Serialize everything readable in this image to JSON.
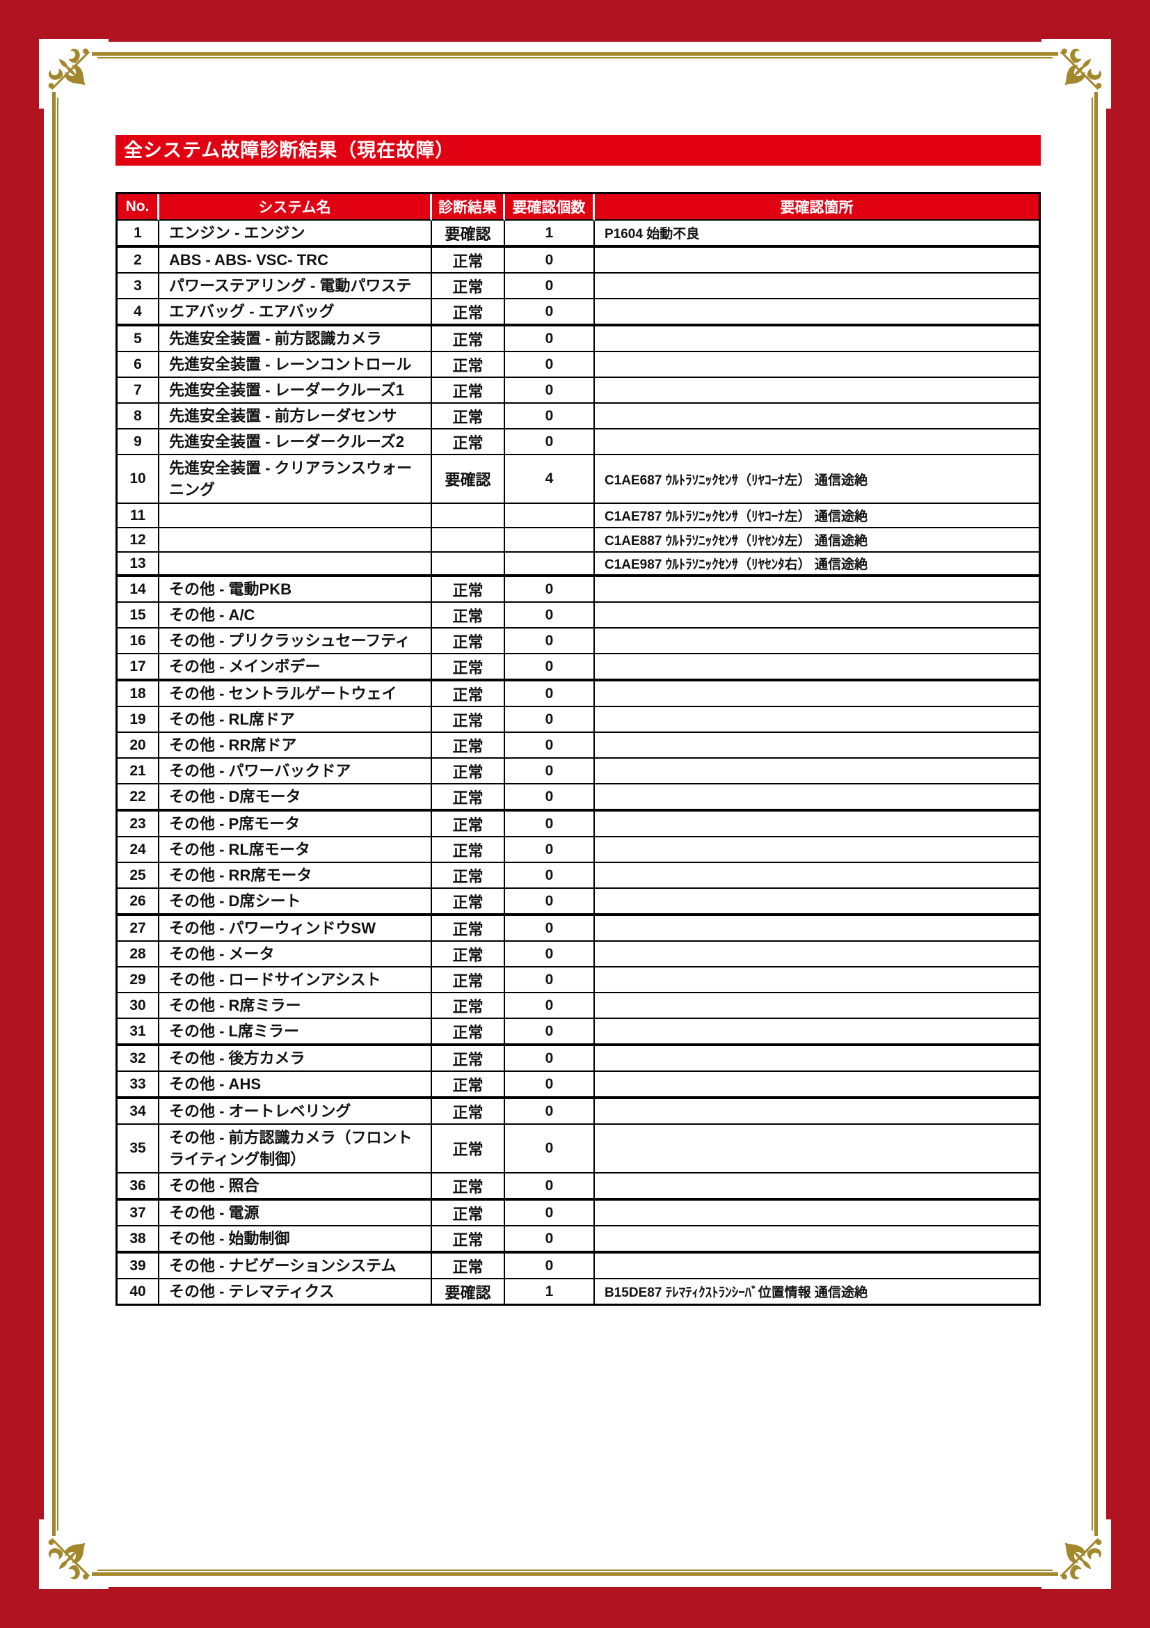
{
  "page": {
    "title": "全システム故障診断結果（現在故障）"
  },
  "colors": {
    "border_red": "#b11420",
    "accent_red": "#e10012",
    "gold": "#a3872c",
    "text": "#111111"
  },
  "table": {
    "headers": [
      "No.",
      "システム名",
      "診断結果",
      "要確認個数",
      "要確認箇所"
    ],
    "rows": [
      {
        "no": "1",
        "system": "エンジン - エンジン",
        "result": "要確認",
        "count": "1",
        "detail": "P1604 始動不良",
        "tall": false,
        "group_end": true
      },
      {
        "no": "2",
        "system": "ABS - ABS- VSC- TRC",
        "result": "正常",
        "count": "0",
        "detail": "",
        "tall": false,
        "group_end": false
      },
      {
        "no": "3",
        "system": "パワーステアリング - 電動パワステ",
        "result": "正常",
        "count": "0",
        "detail": "",
        "tall": false,
        "group_end": false
      },
      {
        "no": "4",
        "system": "エアバッグ - エアバッグ",
        "result": "正常",
        "count": "0",
        "detail": "",
        "tall": false,
        "group_end": true
      },
      {
        "no": "5",
        "system": "先進安全装置 - 前方認識カメラ",
        "result": "正常",
        "count": "0",
        "detail": "",
        "tall": false,
        "group_end": false
      },
      {
        "no": "6",
        "system": "先進安全装置 - レーンコントロール",
        "result": "正常",
        "count": "0",
        "detail": "",
        "tall": false,
        "group_end": false
      },
      {
        "no": "7",
        "system": "先進安全装置 - レーダークルーズ1",
        "result": "正常",
        "count": "0",
        "detail": "",
        "tall": false,
        "group_end": false
      },
      {
        "no": "8",
        "system": "先進安全装置 - 前方レーダセンサ",
        "result": "正常",
        "count": "0",
        "detail": "",
        "tall": false,
        "group_end": false
      },
      {
        "no": "9",
        "system": "先進安全装置 - レーダークルーズ2",
        "result": "正常",
        "count": "0",
        "detail": "",
        "tall": false,
        "group_end": false
      },
      {
        "no": "10",
        "system": "先進安全装置 - クリアランスウォーニング",
        "result": "要確認",
        "count": "4",
        "detail": "C1AE687 ｳﾙﾄﾗｿﾆｯｸｾﾝｻ（ﾘﾔｺｰﾅ左） 通信途絶",
        "tall": true,
        "group_end": false
      },
      {
        "no": "11",
        "system": "",
        "result": "",
        "count": "",
        "detail": "C1AE787 ｳﾙﾄﾗｿﾆｯｸｾﾝｻ（ﾘﾔｺｰﾅ左） 通信途絶",
        "tall": false,
        "group_end": false
      },
      {
        "no": "12",
        "system": "",
        "result": "",
        "count": "",
        "detail": "C1AE887 ｳﾙﾄﾗｿﾆｯｸｾﾝｻ（ﾘﾔｾﾝﾀ左） 通信途絶",
        "tall": false,
        "group_end": false
      },
      {
        "no": "13",
        "system": "",
        "result": "",
        "count": "",
        "detail": "C1AE987 ｳﾙﾄﾗｿﾆｯｸｾﾝｻ（ﾘﾔｾﾝﾀ右） 通信途絶",
        "tall": false,
        "group_end": true
      },
      {
        "no": "14",
        "system": "その他 - 電動PKB",
        "result": "正常",
        "count": "0",
        "detail": "",
        "tall": false,
        "group_end": false
      },
      {
        "no": "15",
        "system": "その他 - A/C",
        "result": "正常",
        "count": "0",
        "detail": "",
        "tall": false,
        "group_end": false
      },
      {
        "no": "16",
        "system": "その他 - プリクラッシュセーフティ",
        "result": "正常",
        "count": "0",
        "detail": "",
        "tall": false,
        "group_end": false
      },
      {
        "no": "17",
        "system": "その他 - メインボデー",
        "result": "正常",
        "count": "0",
        "detail": "",
        "tall": false,
        "group_end": true
      },
      {
        "no": "18",
        "system": "その他 - セントラルゲートウェイ",
        "result": "正常",
        "count": "0",
        "detail": "",
        "tall": false,
        "group_end": false
      },
      {
        "no": "19",
        "system": "その他 - RL席ドア",
        "result": "正常",
        "count": "0",
        "detail": "",
        "tall": false,
        "group_end": false
      },
      {
        "no": "20",
        "system": "その他 - RR席ドア",
        "result": "正常",
        "count": "0",
        "detail": "",
        "tall": false,
        "group_end": false
      },
      {
        "no": "21",
        "system": "その他 - パワーバックドア",
        "result": "正常",
        "count": "0",
        "detail": "",
        "tall": false,
        "group_end": false
      },
      {
        "no": "22",
        "system": "その他 - D席モータ",
        "result": "正常",
        "count": "0",
        "detail": "",
        "tall": false,
        "group_end": true
      },
      {
        "no": "23",
        "system": "その他 - P席モータ",
        "result": "正常",
        "count": "0",
        "detail": "",
        "tall": false,
        "group_end": false
      },
      {
        "no": "24",
        "system": "その他 - RL席モータ",
        "result": "正常",
        "count": "0",
        "detail": "",
        "tall": false,
        "group_end": false
      },
      {
        "no": "25",
        "system": "その他 - RR席モータ",
        "result": "正常",
        "count": "0",
        "detail": "",
        "tall": false,
        "group_end": false
      },
      {
        "no": "26",
        "system": "その他 - D席シート",
        "result": "正常",
        "count": "0",
        "detail": "",
        "tall": false,
        "group_end": true
      },
      {
        "no": "27",
        "system": "その他 - パワーウィンドウSW",
        "result": "正常",
        "count": "0",
        "detail": "",
        "tall": false,
        "group_end": false
      },
      {
        "no": "28",
        "system": "その他 - メータ",
        "result": "正常",
        "count": "0",
        "detail": "",
        "tall": false,
        "group_end": false
      },
      {
        "no": "29",
        "system": "その他 - ロードサインアシスト",
        "result": "正常",
        "count": "0",
        "detail": "",
        "tall": false,
        "group_end": false
      },
      {
        "no": "30",
        "system": "その他 - R席ミラー",
        "result": "正常",
        "count": "0",
        "detail": "",
        "tall": false,
        "group_end": false
      },
      {
        "no": "31",
        "system": "その他 - L席ミラー",
        "result": "正常",
        "count": "0",
        "detail": "",
        "tall": false,
        "group_end": true
      },
      {
        "no": "32",
        "system": "その他 - 後方カメラ",
        "result": "正常",
        "count": "0",
        "detail": "",
        "tall": false,
        "group_end": false
      },
      {
        "no": "33",
        "system": "その他 - AHS",
        "result": "正常",
        "count": "0",
        "detail": "",
        "tall": false,
        "group_end": true
      },
      {
        "no": "34",
        "system": "その他 - オートレベリング",
        "result": "正常",
        "count": "0",
        "detail": "",
        "tall": false,
        "group_end": false
      },
      {
        "no": "35",
        "system": "その他 - 前方認識カメラ（フロントライティング制御）",
        "result": "正常",
        "count": "0",
        "detail": "",
        "tall": true,
        "group_end": false
      },
      {
        "no": "36",
        "system": "その他 - 照合",
        "result": "正常",
        "count": "0",
        "detail": "",
        "tall": false,
        "group_end": true
      },
      {
        "no": "37",
        "system": "その他 - 電源",
        "result": "正常",
        "count": "0",
        "detail": "",
        "tall": false,
        "group_end": false
      },
      {
        "no": "38",
        "system": "その他 - 始動制御",
        "result": "正常",
        "count": "0",
        "detail": "",
        "tall": false,
        "group_end": true
      },
      {
        "no": "39",
        "system": "その他 - ナビゲーションシステム",
        "result": "正常",
        "count": "0",
        "detail": "",
        "tall": false,
        "group_end": false
      },
      {
        "no": "40",
        "system": "その他 - テレマティクス",
        "result": "要確認",
        "count": "1",
        "detail": "B15DE87 ﾃﾚﾏﾃｨｸｽﾄﾗﾝｼｰﾊﾞ位置情報 通信途絶",
        "tall": false,
        "group_end": false
      }
    ]
  }
}
